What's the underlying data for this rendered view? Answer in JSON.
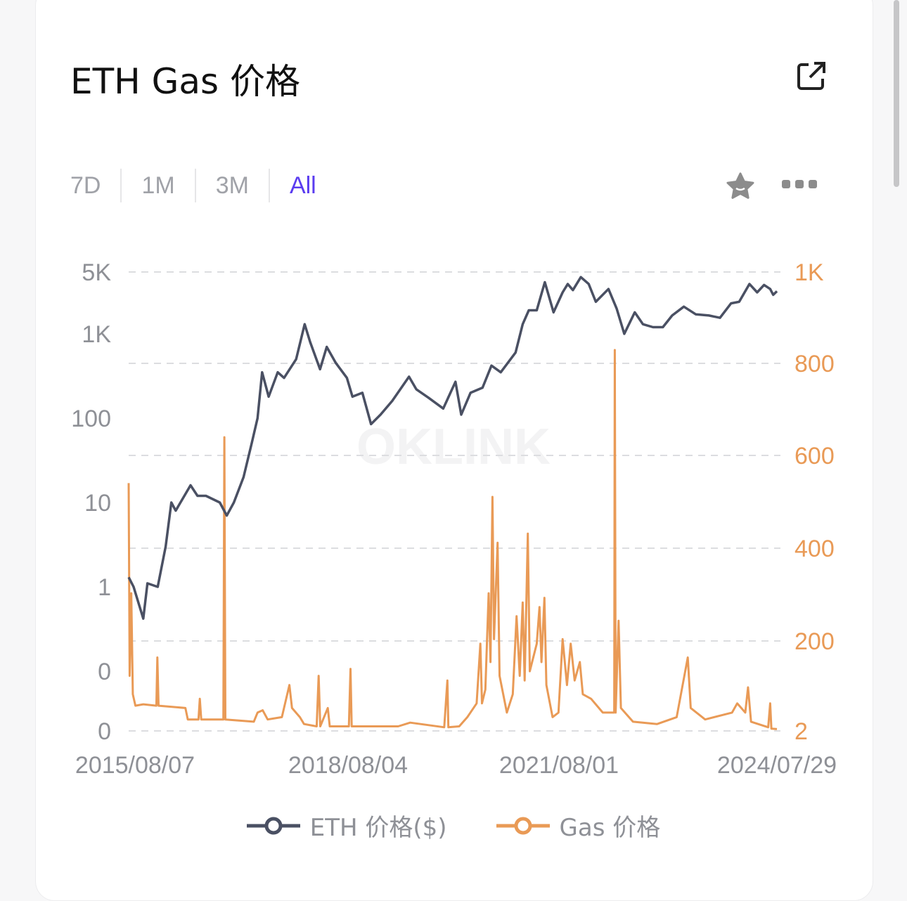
{
  "title": "ETH Gas 价格",
  "tabs": [
    {
      "label": "7D"
    },
    {
      "label": "1M"
    },
    {
      "label": "3M"
    },
    {
      "label": "All",
      "active": true
    }
  ],
  "icons": {
    "share": "external-link-icon",
    "favorite": "star-icon",
    "more": "more-dots-icon"
  },
  "watermark": "OKLINK",
  "colors": {
    "eth": "#4a5063",
    "gas": "#e99a56",
    "active_tab": "#5a3cf0",
    "axis_text": "#8e9096"
  },
  "chart_data": {
    "type": "line",
    "x_start": "2015-08-07",
    "x_end": "2024-07-29",
    "x_ticks": [
      "2015/08/07",
      "2018/08/04",
      "2021/08/01",
      "2024/07/29"
    ],
    "y_left": {
      "scale": "log",
      "ticks": [
        "5K",
        "1K",
        "100",
        "10",
        "1",
        "0",
        "0"
      ]
    },
    "y_right": {
      "scale": "linear",
      "range": [
        0,
        1000
      ],
      "ticks": [
        "1K",
        "800",
        "600",
        "400",
        "200",
        "2"
      ]
    },
    "grid": "horizontal dashed",
    "legend_position": "bottom",
    "series": [
      {
        "name": "ETH 价格($)",
        "axis": "left",
        "points": [
          [
            "2015-08-07",
            1.3
          ],
          [
            "2015-09-01",
            1.0
          ],
          [
            "2015-10-20",
            0.42
          ],
          [
            "2015-11-10",
            1.1
          ],
          [
            "2016-01-01",
            1.0
          ],
          [
            "2016-02-10",
            3
          ],
          [
            "2016-03-10",
            10
          ],
          [
            "2016-04-01",
            8
          ],
          [
            "2016-06-15",
            16
          ],
          [
            "2016-07-20",
            12
          ],
          [
            "2016-09-01",
            12
          ],
          [
            "2016-11-10",
            10
          ],
          [
            "2016-12-15",
            7
          ],
          [
            "2017-01-20",
            10
          ],
          [
            "2017-03-10",
            20
          ],
          [
            "2017-04-20",
            50
          ],
          [
            "2017-05-20",
            100
          ],
          [
            "2017-06-12",
            350
          ],
          [
            "2017-07-15",
            180
          ],
          [
            "2017-08-30",
            350
          ],
          [
            "2017-10-01",
            300
          ],
          [
            "2017-12-01",
            500
          ],
          [
            "2018-01-13",
            1300
          ],
          [
            "2018-02-10",
            800
          ],
          [
            "2018-04-01",
            380
          ],
          [
            "2018-05-05",
            700
          ],
          [
            "2018-06-20",
            450
          ],
          [
            "2018-08-15",
            300
          ],
          [
            "2018-09-12",
            180
          ],
          [
            "2018-11-01",
            200
          ],
          [
            "2018-12-15",
            85
          ],
          [
            "2019-02-01",
            110
          ],
          [
            "2019-04-01",
            160
          ],
          [
            "2019-06-25",
            310
          ],
          [
            "2019-08-01",
            220
          ],
          [
            "2019-10-01",
            175
          ],
          [
            "2019-12-15",
            130
          ],
          [
            "2020-02-15",
            270
          ],
          [
            "2020-03-15",
            110
          ],
          [
            "2020-05-01",
            200
          ],
          [
            "2020-07-01",
            230
          ],
          [
            "2020-08-15",
            420
          ],
          [
            "2020-10-01",
            350
          ],
          [
            "2020-12-15",
            600
          ],
          [
            "2021-01-20",
            1300
          ],
          [
            "2021-02-20",
            1900
          ],
          [
            "2021-04-01",
            1900
          ],
          [
            "2021-05-12",
            4100
          ],
          [
            "2021-06-25",
            1800
          ],
          [
            "2021-08-10",
            3100
          ],
          [
            "2021-09-05",
            3900
          ],
          [
            "2021-10-01",
            3300
          ],
          [
            "2021-11-10",
            4700
          ],
          [
            "2021-12-20",
            3900
          ],
          [
            "2022-01-25",
            2400
          ],
          [
            "2022-03-30",
            3400
          ],
          [
            "2022-05-10",
            2000
          ],
          [
            "2022-06-18",
            1000
          ],
          [
            "2022-08-10",
            1800
          ],
          [
            "2022-09-20",
            1300
          ],
          [
            "2022-11-10",
            1200
          ],
          [
            "2022-12-30",
            1200
          ],
          [
            "2023-02-15",
            1650
          ],
          [
            "2023-04-15",
            2100
          ],
          [
            "2023-06-15",
            1700
          ],
          [
            "2023-08-20",
            1650
          ],
          [
            "2023-10-15",
            1550
          ],
          [
            "2023-12-10",
            2300
          ],
          [
            "2024-01-20",
            2400
          ],
          [
            "2024-03-12",
            3900
          ],
          [
            "2024-04-20",
            3100
          ],
          [
            "2024-05-25",
            3800
          ],
          [
            "2024-06-25",
            3400
          ],
          [
            "2024-07-10",
            2900
          ],
          [
            "2024-07-29",
            3200
          ]
        ]
      },
      {
        "name": "Gas 价格",
        "axis": "right",
        "points": [
          [
            "2015-08-07",
            540
          ],
          [
            "2015-08-12",
            120
          ],
          [
            "2015-08-20",
            300
          ],
          [
            "2015-08-28",
            80
          ],
          [
            "2015-09-10",
            55
          ],
          [
            "2015-10-20",
            58
          ],
          [
            "2015-12-25",
            55
          ],
          [
            "2015-12-30",
            160
          ],
          [
            "2016-01-05",
            55
          ],
          [
            "2016-05-20",
            50
          ],
          [
            "2016-06-01",
            25
          ],
          [
            "2016-07-25",
            25
          ],
          [
            "2016-08-01",
            70
          ],
          [
            "2016-08-08",
            25
          ],
          [
            "2016-11-28",
            25
          ],
          [
            "2016-12-03",
            640
          ],
          [
            "2016-12-08",
            25
          ],
          [
            "2017-05-01",
            20
          ],
          [
            "2017-05-20",
            40
          ],
          [
            "2017-06-15",
            45
          ],
          [
            "2017-07-10",
            25
          ],
          [
            "2017-09-20",
            30
          ],
          [
            "2017-10-28",
            100
          ],
          [
            "2017-11-10",
            50
          ],
          [
            "2017-12-20",
            30
          ],
          [
            "2018-01-10",
            15
          ],
          [
            "2018-03-15",
            10
          ],
          [
            "2018-03-25",
            120
          ],
          [
            "2018-04-02",
            10
          ],
          [
            "2018-05-10",
            50
          ],
          [
            "2018-05-20",
            10
          ],
          [
            "2018-08-25",
            10
          ],
          [
            "2018-09-02",
            135
          ],
          [
            "2018-09-08",
            10
          ],
          [
            "2019-05-01",
            10
          ],
          [
            "2019-07-01",
            18
          ],
          [
            "2019-12-20",
            8
          ],
          [
            "2020-01-05",
            110
          ],
          [
            "2020-01-10",
            8
          ],
          [
            "2020-03-05",
            10
          ],
          [
            "2020-04-15",
            30
          ],
          [
            "2020-06-01",
            60
          ],
          [
            "2020-06-20",
            190
          ],
          [
            "2020-06-28",
            60
          ],
          [
            "2020-07-15",
            90
          ],
          [
            "2020-08-01",
            300
          ],
          [
            "2020-08-10",
            150
          ],
          [
            "2020-08-20",
            510
          ],
          [
            "2020-08-28",
            200
          ],
          [
            "2020-09-15",
            410
          ],
          [
            "2020-09-25",
            120
          ],
          [
            "2020-11-01",
            40
          ],
          [
            "2020-12-01",
            80
          ],
          [
            "2020-12-20",
            250
          ],
          [
            "2021-01-05",
            120
          ],
          [
            "2021-01-20",
            280
          ],
          [
            "2021-01-30",
            110
          ],
          [
            "2021-02-15",
            430
          ],
          [
            "2021-02-25",
            130
          ],
          [
            "2021-04-01",
            190
          ],
          [
            "2021-04-15",
            270
          ],
          [
            "2021-04-25",
            150
          ],
          [
            "2021-05-10",
            290
          ],
          [
            "2021-05-20",
            100
          ],
          [
            "2021-06-20",
            30
          ],
          [
            "2021-07-20",
            40
          ],
          [
            "2021-08-10",
            200
          ],
          [
            "2021-09-01",
            100
          ],
          [
            "2021-09-20",
            190
          ],
          [
            "2021-10-10",
            110
          ],
          [
            "2021-11-05",
            150
          ],
          [
            "2021-11-20",
            80
          ],
          [
            "2022-01-01",
            70
          ],
          [
            "2022-03-01",
            40
          ],
          [
            "2022-04-28",
            40
          ],
          [
            "2022-05-01",
            830
          ],
          [
            "2022-05-05",
            40
          ],
          [
            "2022-05-20",
            240
          ],
          [
            "2022-06-01",
            50
          ],
          [
            "2022-08-01",
            20
          ],
          [
            "2022-12-01",
            15
          ],
          [
            "2023-03-10",
            30
          ],
          [
            "2023-05-05",
            160
          ],
          [
            "2023-05-20",
            50
          ],
          [
            "2023-08-01",
            25
          ],
          [
            "2023-12-15",
            40
          ],
          [
            "2024-01-10",
            60
          ],
          [
            "2024-02-20",
            40
          ],
          [
            "2024-03-05",
            95
          ],
          [
            "2024-03-20",
            20
          ],
          [
            "2024-06-15",
            8
          ],
          [
            "2024-06-25",
            60
          ],
          [
            "2024-07-01",
            5
          ],
          [
            "2024-07-29",
            4
          ]
        ]
      }
    ]
  }
}
